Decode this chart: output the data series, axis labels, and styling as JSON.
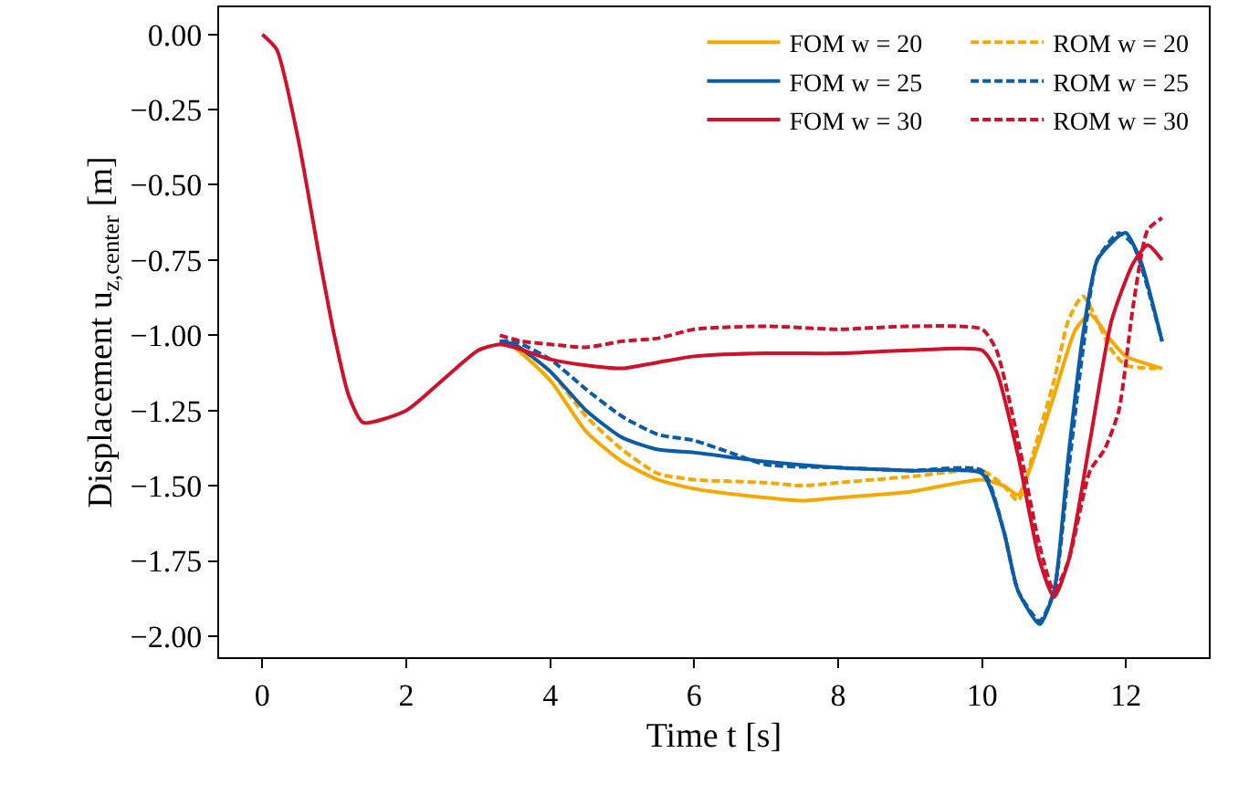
{
  "chart_data": {
    "type": "line",
    "xlabel": "Time t [s]",
    "ylabel": "Displacement u$_{z,center}$ [m]",
    "xlim": [
      -0.6,
      13.15
    ],
    "ylim": [
      -2.07,
      0.09
    ],
    "xticks": [
      0,
      2,
      4,
      6,
      8,
      10,
      12
    ],
    "yticks": [
      {
        "value": 0,
        "label": "0.00"
      },
      {
        "value": -0.25,
        "label": "−0.25"
      },
      {
        "value": -0.5,
        "label": "−0.50"
      },
      {
        "value": -0.75,
        "label": "−0.75"
      },
      {
        "value": -1,
        "label": "−1.00"
      },
      {
        "value": -1.25,
        "label": "−1.25"
      },
      {
        "value": -1.5,
        "label": "−1.50"
      },
      {
        "value": -1.75,
        "label": "−1.75"
      },
      {
        "value": -2,
        "label": "−2.00"
      }
    ],
    "grid": false,
    "legend": "top right",
    "marker": "none",
    "series": [
      {
        "name": "FOM w = 20",
        "color": "#f5a800",
        "line_style": "solid",
        "x": [
          3.3,
          3.5,
          4,
          4.5,
          5,
          5.5,
          6,
          7,
          7.5,
          8,
          9,
          10,
          10.3,
          10.5,
          10.7,
          11,
          11.3,
          11.5,
          11.8,
          12,
          12.5
        ],
        "values": [
          -1.02,
          -1.04,
          -1.15,
          -1.32,
          -1.42,
          -1.48,
          -1.51,
          -1.54,
          -1.55,
          -1.54,
          -1.52,
          -1.48,
          -1.5,
          -1.53,
          -1.42,
          -1.2,
          -0.98,
          -0.93,
          -1.02,
          -1.07,
          -1.11
        ]
      },
      {
        "name": "ROM w = 20",
        "color": "#f5a800",
        "line_style": "dashed",
        "x": [
          3.5,
          4,
          4.5,
          5,
          5.5,
          6,
          7,
          7.5,
          8,
          9,
          10,
          10.3,
          10.5,
          10.7,
          11,
          11.2,
          11.4,
          11.8,
          12,
          12.5
        ],
        "values": [
          -1.03,
          -1.12,
          -1.27,
          -1.38,
          -1.46,
          -1.48,
          -1.49,
          -1.5,
          -1.49,
          -1.47,
          -1.45,
          -1.5,
          -1.55,
          -1.4,
          -1.15,
          -0.95,
          -0.87,
          -1.05,
          -1.1,
          -1.11
        ]
      },
      {
        "name": "FOM w = 25",
        "color": "#0a5ca8",
        "line_style": "solid",
        "x": [
          3.3,
          3.5,
          4,
          4.5,
          5,
          5.5,
          6,
          7,
          8,
          9,
          10,
          10.3,
          10.5,
          10.8,
          11,
          11.2,
          11.4,
          11.6,
          11.9,
          12,
          12.2,
          12.5
        ],
        "values": [
          -1.02,
          -1.03,
          -1.12,
          -1.25,
          -1.34,
          -1.38,
          -1.39,
          -1.42,
          -1.44,
          -1.45,
          -1.46,
          -1.65,
          -1.85,
          -1.96,
          -1.85,
          -1.4,
          -1.0,
          -0.75,
          -0.67,
          -0.66,
          -0.75,
          -1.02
        ]
      },
      {
        "name": "ROM w = 25",
        "color": "#0a5ca8",
        "line_style": "dashed",
        "x": [
          3.3,
          3.5,
          4,
          4.5,
          5,
          5.5,
          6,
          6.5,
          7,
          8,
          9,
          10,
          10.3,
          10.5,
          10.8,
          11,
          11.2,
          11.4,
          11.6,
          11.9,
          12.1,
          12.5
        ],
        "values": [
          -1.02,
          -1.02,
          -1.08,
          -1.18,
          -1.27,
          -1.33,
          -1.35,
          -1.39,
          -1.43,
          -1.44,
          -1.45,
          -1.45,
          -1.65,
          -1.85,
          -1.95,
          -1.85,
          -1.45,
          -1.05,
          -0.75,
          -0.66,
          -0.7,
          -1.02
        ]
      },
      {
        "name": "FOM w = 30",
        "color": "#d0112b",
        "line_style": "solid",
        "x": [
          0,
          0.2,
          0.5,
          0.8,
          1.0,
          1.2,
          1.4,
          2,
          2.5,
          3,
          3.3,
          3.5,
          4,
          4.5,
          5,
          5.5,
          6,
          7,
          8,
          9,
          10,
          10.2,
          10.5,
          10.8,
          11,
          11.2,
          11.5,
          11.8,
          12.1,
          12.3,
          12.5
        ],
        "values": [
          0,
          -0.05,
          -0.35,
          -0.75,
          -1.0,
          -1.2,
          -1.29,
          -1.25,
          -1.15,
          -1.05,
          -1.03,
          -1.04,
          -1.08,
          -1.1,
          -1.11,
          -1.09,
          -1.07,
          -1.06,
          -1.06,
          -1.05,
          -1.05,
          -1.12,
          -1.4,
          -1.75,
          -1.87,
          -1.75,
          -1.35,
          -0.95,
          -0.76,
          -0.7,
          -0.75
        ]
      },
      {
        "name": "ROM w = 30",
        "color": "#d0112b",
        "line_style": "dashed",
        "x": [
          3.3,
          3.6,
          4,
          4.5,
          5,
          5.5,
          6,
          7,
          8,
          9,
          10,
          10.2,
          10.5,
          10.8,
          11,
          11.2,
          11.5,
          11.7,
          11.9,
          12.1,
          12.3,
          12.5
        ],
        "values": [
          -1.0,
          -1.02,
          -1.03,
          -1.04,
          -1.02,
          -1.01,
          -0.98,
          -0.97,
          -0.98,
          -0.97,
          -0.98,
          -1.05,
          -1.35,
          -1.7,
          -1.85,
          -1.75,
          -1.45,
          -1.38,
          -1.25,
          -0.9,
          -0.65,
          -0.61
        ]
      }
    ]
  }
}
